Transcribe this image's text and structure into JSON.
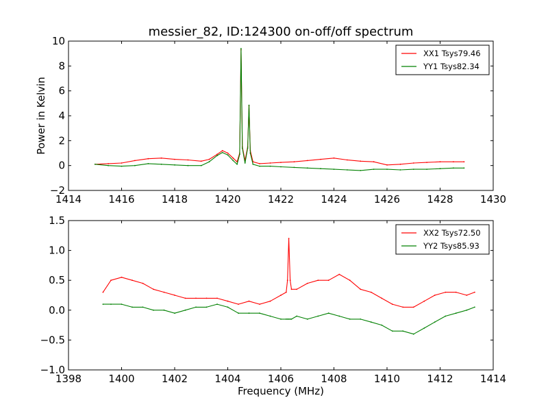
{
  "figure": {
    "title": "messier_82, ID:124300 on-off/off spectrum",
    "ylabel": "Power in Kelvin",
    "xlabel": "Frequency (MHz)"
  },
  "chart_data": [
    {
      "type": "line",
      "title": "messier_82, ID:124300 on-off/off spectrum",
      "ylabel": "Power in Kelvin",
      "xlim": [
        1414,
        1430
      ],
      "ylim": [
        -2,
        10
      ],
      "xticks": [
        1414,
        1416,
        1418,
        1420,
        1422,
        1424,
        1426,
        1428,
        1430
      ],
      "yticks": [
        -2,
        0,
        2,
        4,
        6,
        8,
        10
      ],
      "legend_position": "top-right",
      "series": [
        {
          "name": "XX1 Tsys79.46",
          "color": "#ff0000",
          "x": [
            1415.0,
            1415.5,
            1416.0,
            1416.5,
            1417.0,
            1417.5,
            1418.0,
            1418.5,
            1419.0,
            1419.3,
            1419.6,
            1419.8,
            1420.0,
            1420.2,
            1420.35,
            1420.45,
            1420.5,
            1420.55,
            1420.65,
            1420.75,
            1420.8,
            1420.85,
            1420.95,
            1421.2,
            1421.6,
            1422.0,
            1422.5,
            1423.0,
            1423.5,
            1424.0,
            1424.5,
            1425.0,
            1425.5,
            1426.0,
            1426.5,
            1427.0,
            1427.5,
            1428.0,
            1428.5,
            1428.9
          ],
          "y": [
            0.1,
            0.15,
            0.2,
            0.4,
            0.55,
            0.6,
            0.5,
            0.45,
            0.35,
            0.5,
            0.9,
            1.2,
            1.0,
            0.6,
            0.3,
            1.0,
            9.3,
            1.5,
            0.4,
            1.5,
            4.8,
            1.2,
            0.3,
            0.15,
            0.2,
            0.25,
            0.3,
            0.4,
            0.5,
            0.6,
            0.45,
            0.35,
            0.3,
            0.05,
            0.1,
            0.2,
            0.25,
            0.3,
            0.3,
            0.3
          ]
        },
        {
          "name": "YY1 Tsys82.34",
          "color": "#008000",
          "x": [
            1415.0,
            1415.5,
            1416.0,
            1416.5,
            1417.0,
            1417.5,
            1418.0,
            1418.5,
            1419.0,
            1419.3,
            1419.6,
            1419.8,
            1420.0,
            1420.2,
            1420.35,
            1420.45,
            1420.5,
            1420.55,
            1420.65,
            1420.75,
            1420.8,
            1420.85,
            1420.95,
            1421.2,
            1421.6,
            1422.0,
            1422.5,
            1423.0,
            1423.5,
            1424.0,
            1424.5,
            1425.0,
            1425.5,
            1426.0,
            1426.5,
            1427.0,
            1427.5,
            1428.0,
            1428.5,
            1428.9
          ],
          "y": [
            0.1,
            0.0,
            -0.05,
            0.0,
            0.15,
            0.1,
            0.05,
            0.0,
            0.0,
            0.3,
            0.8,
            1.05,
            0.85,
            0.4,
            0.1,
            0.9,
            9.4,
            1.4,
            0.2,
            1.4,
            4.85,
            1.0,
            0.1,
            -0.05,
            -0.05,
            -0.1,
            -0.15,
            -0.2,
            -0.25,
            -0.3,
            -0.35,
            -0.4,
            -0.3,
            -0.3,
            -0.35,
            -0.3,
            -0.3,
            -0.25,
            -0.2,
            -0.2
          ]
        }
      ]
    },
    {
      "type": "line",
      "xlabel": "Frequency (MHz)",
      "xlim": [
        1398,
        1414
      ],
      "ylim": [
        -1.0,
        1.5
      ],
      "xticks": [
        1398,
        1400,
        1402,
        1404,
        1406,
        1408,
        1410,
        1412,
        1414
      ],
      "yticks": [
        -1.0,
        -0.5,
        0.0,
        0.5,
        1.0,
        1.5
      ],
      "legend_position": "top-right",
      "series": [
        {
          "name": "XX2 Tsys72.50",
          "color": "#ff0000",
          "x": [
            1399.3,
            1399.6,
            1400.0,
            1400.4,
            1400.8,
            1401.2,
            1401.6,
            1402.0,
            1402.4,
            1402.8,
            1403.2,
            1403.6,
            1404.0,
            1404.4,
            1404.8,
            1405.2,
            1405.6,
            1406.0,
            1406.2,
            1406.25,
            1406.3,
            1406.35,
            1406.4,
            1406.6,
            1407.0,
            1407.4,
            1407.8,
            1408.2,
            1408.6,
            1409.0,
            1409.4,
            1409.8,
            1410.2,
            1410.6,
            1411.0,
            1411.4,
            1411.8,
            1412.2,
            1412.6,
            1413.0,
            1413.3
          ],
          "y": [
            0.3,
            0.5,
            0.55,
            0.5,
            0.45,
            0.35,
            0.3,
            0.25,
            0.2,
            0.2,
            0.2,
            0.2,
            0.15,
            0.1,
            0.15,
            0.1,
            0.15,
            0.25,
            0.3,
            0.5,
            1.2,
            0.5,
            0.35,
            0.35,
            0.45,
            0.5,
            0.5,
            0.6,
            0.5,
            0.35,
            0.3,
            0.2,
            0.1,
            0.05,
            0.05,
            0.15,
            0.25,
            0.3,
            0.3,
            0.25,
            0.3
          ]
        },
        {
          "name": "YY2 Tsys85.93",
          "color": "#008000",
          "x": [
            1399.3,
            1399.6,
            1400.0,
            1400.4,
            1400.8,
            1401.2,
            1401.6,
            1402.0,
            1402.4,
            1402.8,
            1403.2,
            1403.6,
            1404.0,
            1404.4,
            1404.8,
            1405.2,
            1405.6,
            1406.0,
            1406.2,
            1406.25,
            1406.3,
            1406.35,
            1406.4,
            1406.6,
            1407.0,
            1407.4,
            1407.8,
            1408.2,
            1408.6,
            1409.0,
            1409.4,
            1409.8,
            1410.2,
            1410.6,
            1411.0,
            1411.4,
            1411.8,
            1412.2,
            1412.6,
            1413.0,
            1413.3
          ],
          "y": [
            0.1,
            0.1,
            0.1,
            0.05,
            0.05,
            0.0,
            0.0,
            -0.05,
            0.0,
            0.05,
            0.05,
            0.1,
            0.05,
            -0.05,
            -0.05,
            -0.05,
            -0.1,
            -0.15,
            -0.15,
            -0.15,
            -0.15,
            -0.15,
            -0.15,
            -0.1,
            -0.15,
            -0.1,
            -0.05,
            -0.1,
            -0.15,
            -0.15,
            -0.2,
            -0.25,
            -0.35,
            -0.35,
            -0.4,
            -0.3,
            -0.2,
            -0.1,
            -0.05,
            0.0,
            0.05
          ]
        }
      ]
    }
  ]
}
